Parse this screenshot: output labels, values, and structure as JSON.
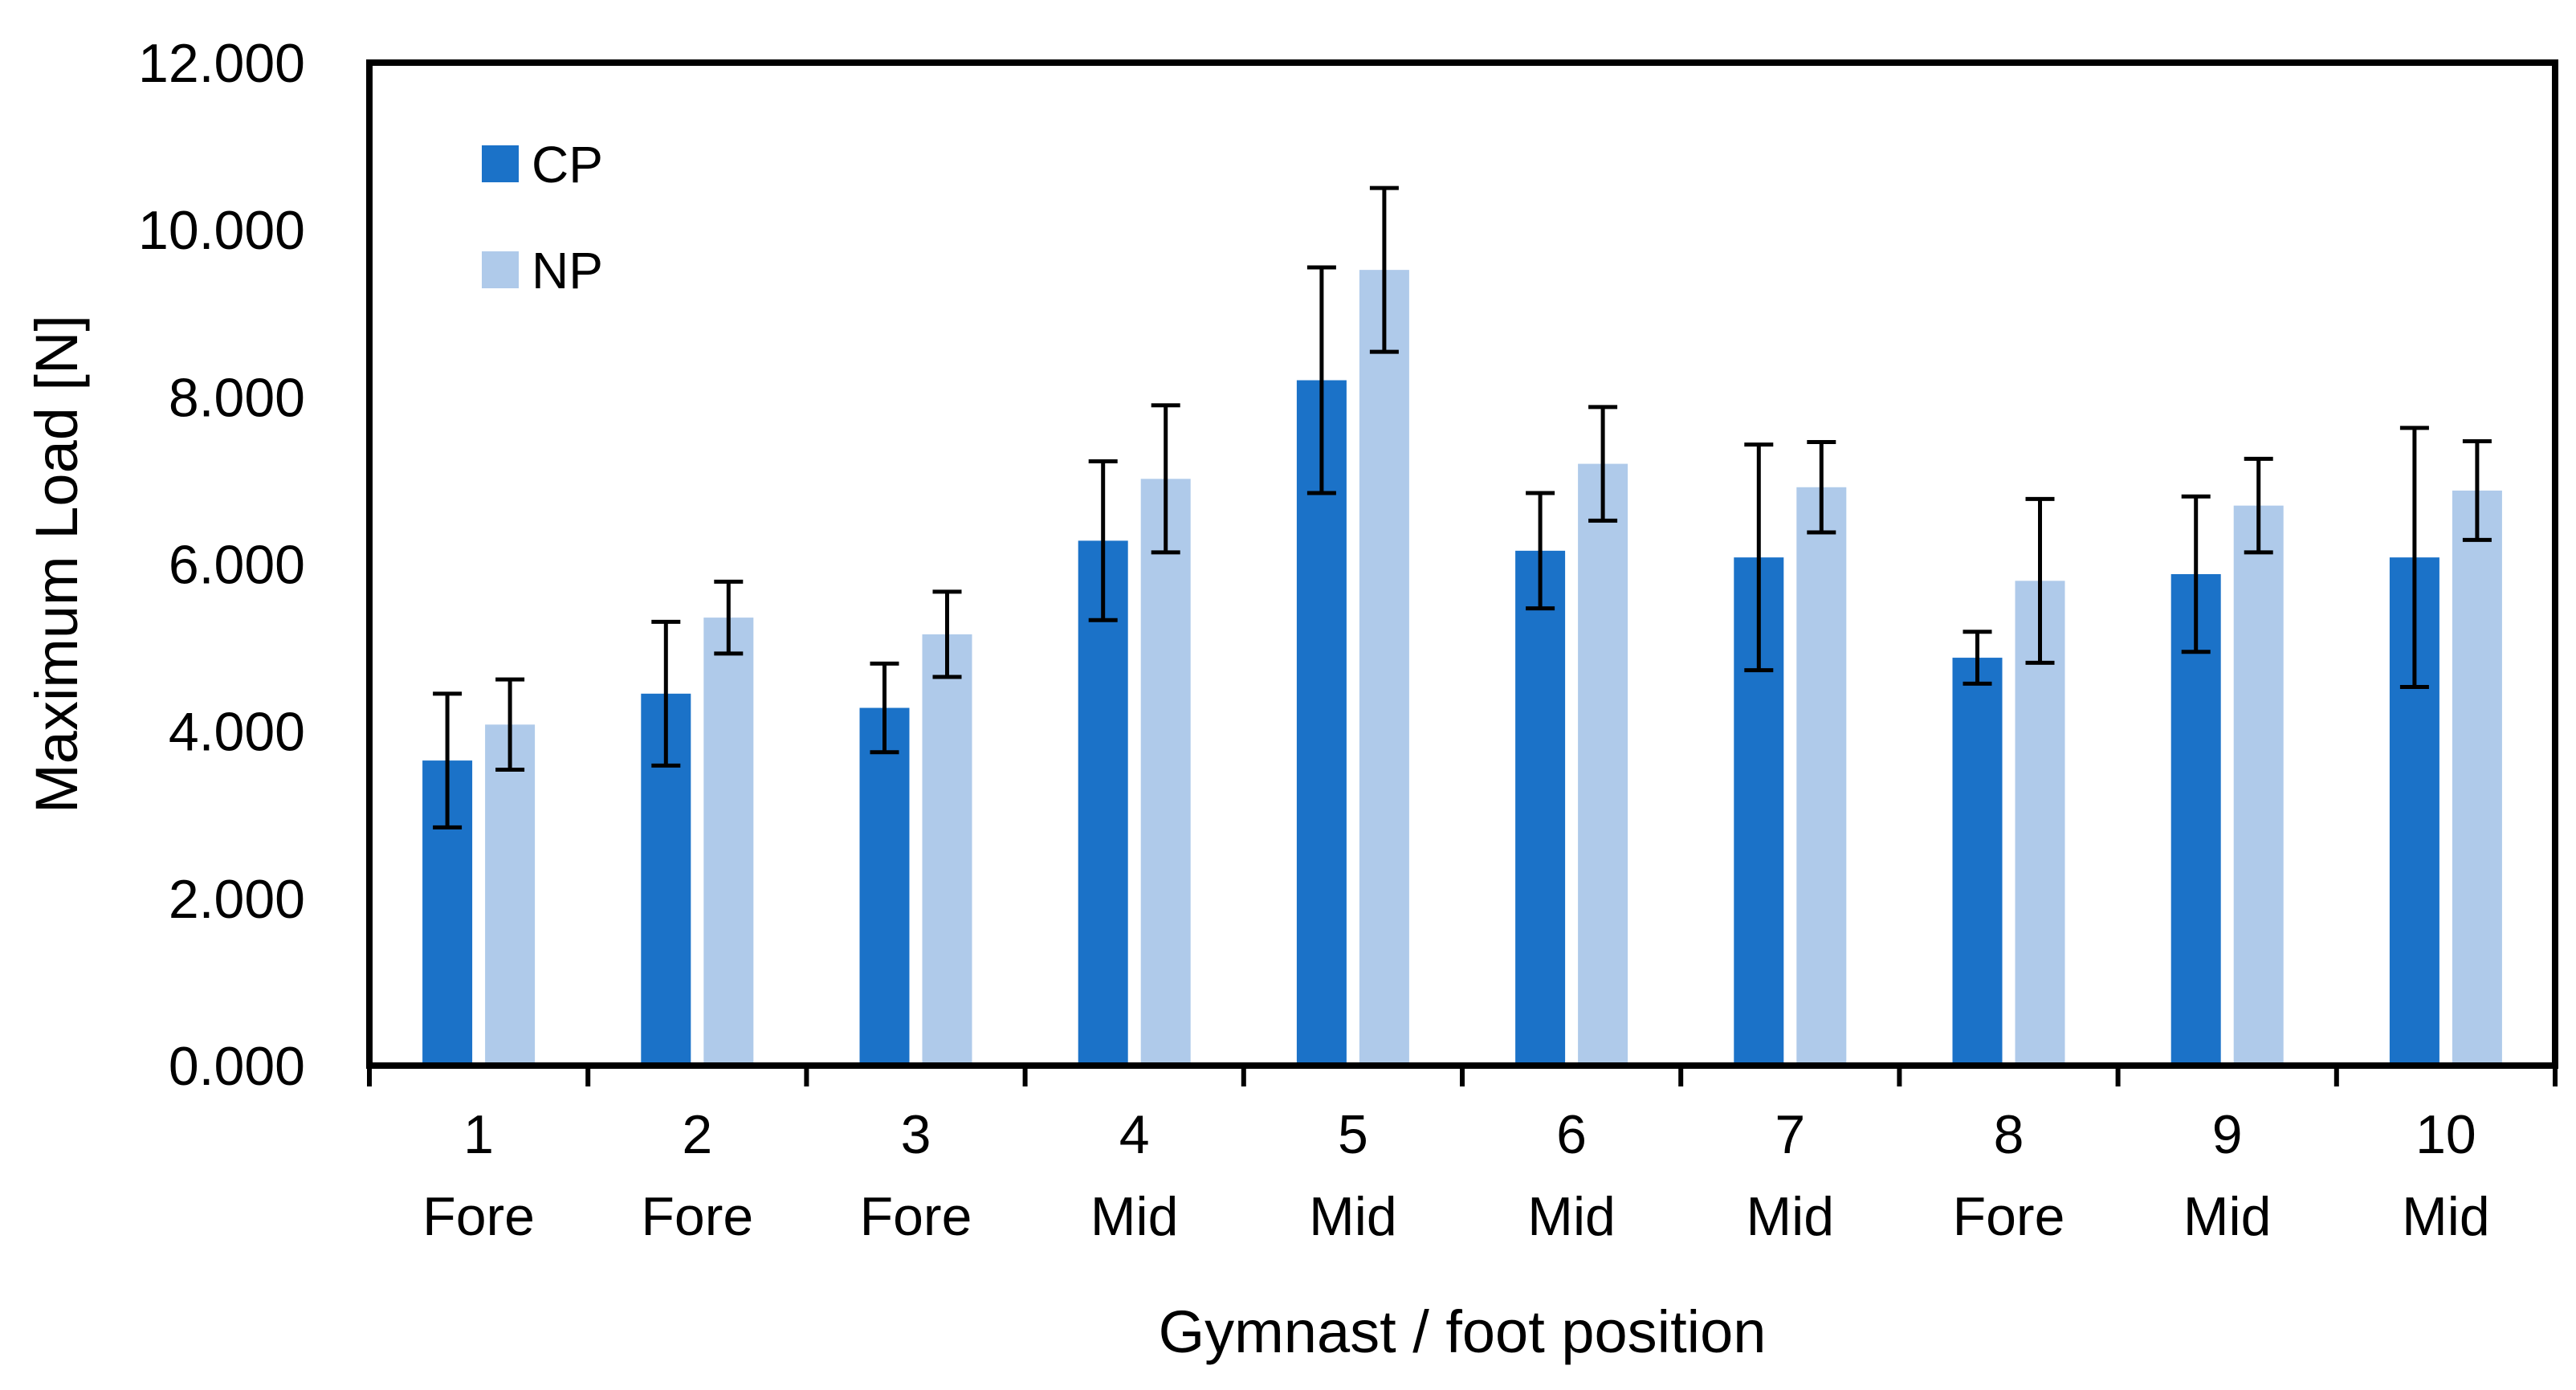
{
  "chart_data": {
    "type": "bar",
    "title": "",
    "xlabel": "Gymnast / foot position",
    "ylabel": "Maximum Load [N]",
    "ylim": [
      0,
      12
    ],
    "yticks": [
      "0.000",
      "2.000",
      "4.000",
      "6.000",
      "8.000",
      "10.000",
      "12.000"
    ],
    "ytick_values": [
      0,
      2,
      4,
      6,
      8,
      10,
      12
    ],
    "categories": [
      {
        "gymnast": "1",
        "position": "Fore"
      },
      {
        "gymnast": "2",
        "position": "Fore"
      },
      {
        "gymnast": "3",
        "position": "Fore"
      },
      {
        "gymnast": "4",
        "position": "Mid"
      },
      {
        "gymnast": "5",
        "position": "Mid"
      },
      {
        "gymnast": "6",
        "position": "Mid"
      },
      {
        "gymnast": "7",
        "position": "Mid"
      },
      {
        "gymnast": "8",
        "position": "Fore"
      },
      {
        "gymnast": "9",
        "position": "Mid"
      },
      {
        "gymnast": "10",
        "position": "Mid"
      }
    ],
    "series": [
      {
        "name": "CP",
        "color": "#1B72C8",
        "values": [
          3.65,
          4.45,
          4.28,
          6.28,
          8.2,
          6.16,
          6.08,
          4.88,
          5.88,
          6.08
        ],
        "errors": [
          0.8,
          0.86,
          0.53,
          0.95,
          1.35,
          0.69,
          1.35,
          0.31,
          0.93,
          1.55
        ]
      },
      {
        "name": "NP",
        "color": "#AFCAEA",
        "values": [
          4.08,
          5.36,
          5.16,
          7.02,
          9.52,
          7.2,
          6.92,
          5.8,
          6.7,
          6.88
        ],
        "errors": [
          0.54,
          0.43,
          0.51,
          0.88,
          0.98,
          0.68,
          0.54,
          0.98,
          0.56,
          0.59
        ]
      }
    ],
    "legend": {
      "placement": "top-left"
    }
  }
}
